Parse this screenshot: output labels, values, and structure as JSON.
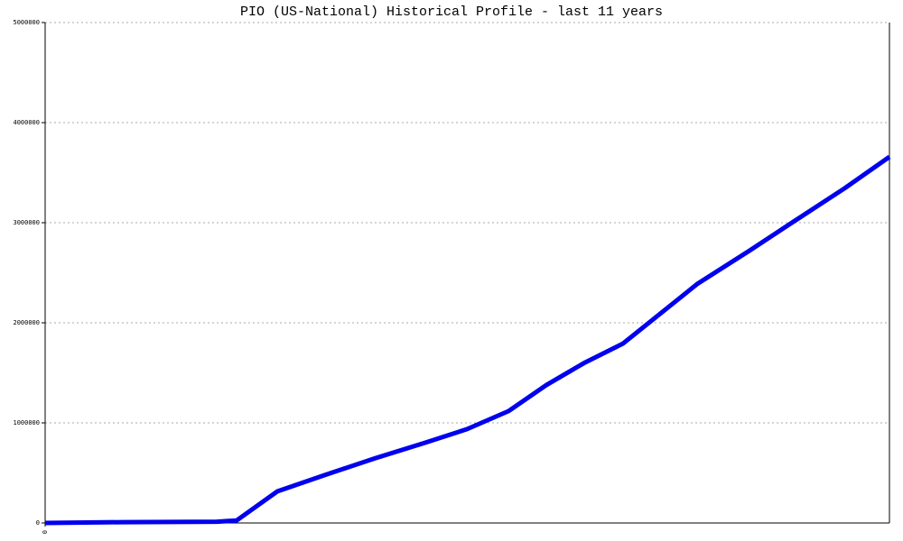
{
  "chart_data": {
    "type": "line",
    "title": "PIO (US-National) Historical Profile - last 11 years",
    "x": [
      0,
      85,
      190,
      212,
      257,
      310,
      365,
      420,
      467,
      513,
      555,
      598,
      640,
      722,
      780,
      830,
      885,
      935
    ],
    "series": [
      {
        "name": "PIO",
        "color": "#0000ee",
        "values": [
          0,
          8000,
          12000,
          25000,
          315000,
          480000,
          645000,
          800000,
          937000,
          1117000,
          1378000,
          1604000,
          1793000,
          2387000,
          2721000,
          3018000,
          3342000,
          3658000
        ]
      }
    ],
    "xlim": [
      0,
      935
    ],
    "xticks": [
      0
    ],
    "ylim": [
      0,
      5000000
    ],
    "yticks": [
      0,
      1000000,
      2000000,
      3000000,
      4000000,
      5000000
    ],
    "grid": true
  }
}
